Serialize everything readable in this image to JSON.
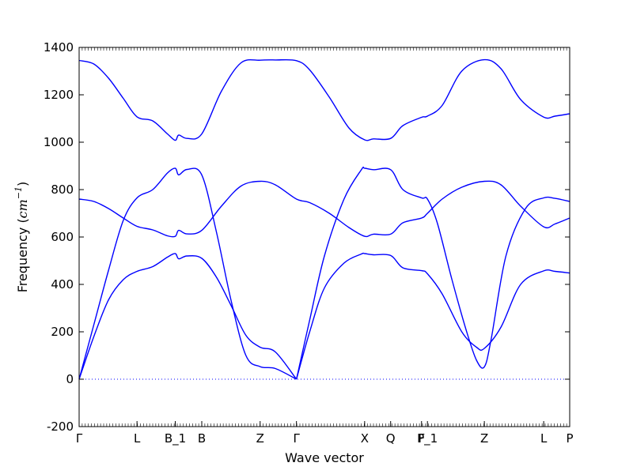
{
  "chart_data": {
    "type": "line",
    "xlabel": "Wave vector",
    "ylabel_prefix": "Frequency (",
    "ylabel_unit": "cm",
    "ylabel_exp": "−1",
    "ylabel_suffix": ")",
    "xlim": [
      0,
      1
    ],
    "ylim": [
      -200,
      1400
    ],
    "y_ticks": [
      -200,
      0,
      200,
      400,
      600,
      800,
      1000,
      1200,
      1400
    ],
    "high_symmetry_points": [
      {
        "label": "Γ",
        "x": 0.0
      },
      {
        "label": "L",
        "x": 0.118
      },
      {
        "label": "B_1",
        "x": 0.196
      },
      {
        "label": "B",
        "x": 0.25
      },
      {
        "label": "Z",
        "x": 0.369
      },
      {
        "label": "Γ",
        "x": 0.443
      },
      {
        "label": "X",
        "x": 0.582
      },
      {
        "label": "Q",
        "x": 0.635
      },
      {
        "label": "F",
        "x": 0.698
      },
      {
        "label": "P_1",
        "x": 0.71
      },
      {
        "label": "Z",
        "x": 0.826
      },
      {
        "label": "L",
        "x": 0.947
      },
      {
        "label": "P",
        "x": 1.0
      }
    ],
    "zero_line": {
      "y": 0,
      "style": "dotted",
      "color": "#0000ff"
    },
    "line_color": "#0000ff",
    "series": [
      {
        "x": [
          0,
          0.03,
          0.06,
          0.09,
          0.118,
          0.15,
          0.18,
          0.196,
          0.203,
          0.22,
          0.25,
          0.29,
          0.33,
          0.369,
          0.4,
          0.443,
          0.47,
          0.51,
          0.55,
          0.582,
          0.6,
          0.635,
          0.66,
          0.698,
          0.71,
          0.74,
          0.78,
          0.826,
          0.86,
          0.9,
          0.947,
          0.97,
          1.0
        ],
        "values": [
          1345,
          1330,
          1270,
          1185,
          1107,
          1090,
          1035,
          1008,
          1030,
          1016,
          1035,
          1215,
          1335,
          1346,
          1347,
          1344,
          1305,
          1190,
          1060,
          1010,
          1014,
          1016,
          1070,
          1105,
          1110,
          1155,
          1300,
          1348,
          1310,
          1180,
          1106,
          1110,
          1120
        ]
      },
      {
        "x": [
          0,
          0.03,
          0.06,
          0.09,
          0.118,
          0.15,
          0.18,
          0.196,
          0.203,
          0.22,
          0.25,
          0.28,
          0.31,
          0.34,
          0.369,
          0.4,
          0.443
        ],
        "values": [
          0,
          230,
          460,
          670,
          765,
          800,
          870,
          890,
          862,
          885,
          862,
          620,
          330,
          100,
          53,
          45,
          0
        ]
      },
      {
        "x": [
          0.443,
          0.47,
          0.5,
          0.54,
          0.575,
          0.582,
          0.6,
          0.635,
          0.66,
          0.698,
          0.71,
          0.73,
          0.76,
          0.79,
          0.81,
          0.826,
          0.84,
          0.87,
          0.91,
          0.947,
          0.97,
          1.0
        ],
        "values": [
          0,
          250,
          520,
          760,
          883,
          890,
          884,
          884,
          800,
          765,
          760,
          660,
          420,
          200,
          80,
          52,
          170,
          520,
          720,
          765,
          763,
          750
        ]
      },
      {
        "x": [
          0,
          0.03,
          0.06,
          0.09,
          0.118,
          0.15,
          0.18,
          0.196,
          0.203,
          0.22,
          0.25,
          0.28,
          0.31,
          0.34,
          0.369,
          0.4,
          0.443
        ],
        "values": [
          0,
          180,
          335,
          420,
          455,
          475,
          515,
          530,
          508,
          520,
          510,
          430,
          310,
          185,
          135,
          115,
          0
        ]
      },
      {
        "x": [
          0.443,
          0.47,
          0.5,
          0.54,
          0.575,
          0.582,
          0.6,
          0.635,
          0.66,
          0.698,
          0.71,
          0.74,
          0.78,
          0.81,
          0.826,
          0.86,
          0.9,
          0.947,
          0.97,
          1.0
        ],
        "values": [
          0,
          200,
          385,
          490,
          528,
          530,
          525,
          522,
          470,
          458,
          445,
          360,
          200,
          135,
          130,
          220,
          400,
          457,
          455,
          448
        ]
      },
      {
        "x": [
          0,
          0.03,
          0.06,
          0.09,
          0.118,
          0.15,
          0.18,
          0.196,
          0.203,
          0.22,
          0.25,
          0.29,
          0.33,
          0.369,
          0.4,
          0.443,
          0.47,
          0.51,
          0.55,
          0.582,
          0.6,
          0.635,
          0.66,
          0.698,
          0.71,
          0.74,
          0.78,
          0.826,
          0.86,
          0.9,
          0.947,
          0.97,
          1.0
        ],
        "values": [
          760,
          750,
          720,
          680,
          645,
          630,
          605,
          603,
          628,
          613,
          628,
          730,
          815,
          835,
          820,
          760,
          745,
          700,
          640,
          603,
          612,
          612,
          660,
          680,
          700,
          760,
          810,
          835,
          820,
          730,
          643,
          655,
          680
        ]
      }
    ]
  }
}
